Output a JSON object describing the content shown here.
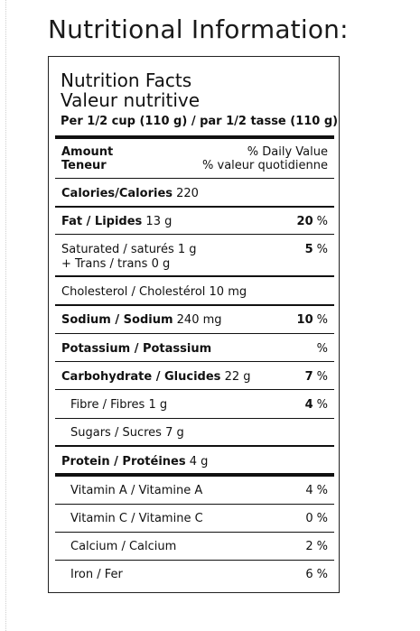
{
  "heading": "Nutritional Information:",
  "label": {
    "title_en": "Nutrition Facts",
    "title_fr": "Valeur nutritive",
    "serving": "Per 1/2 cup (110 g) / par 1/2 tasse (110 g)",
    "amount_en": "Amount",
    "amount_fr": "Teneur",
    "dv_en": "% Daily Value",
    "dv_fr": "% valeur quotidienne",
    "calories_label": "Calories/Calories",
    "calories_value": "220",
    "fat": {
      "label": "Fat / Lipides",
      "amount": "13 g",
      "dv": "20",
      "pct": "%"
    },
    "saturated": {
      "label": "Saturated / saturés 1 g",
      "dv": "5",
      "pct": "%"
    },
    "trans": {
      "label": "+ Trans / trans 0 g"
    },
    "cholesterol": {
      "label": "Cholesterol / Cholestérol 10 mg"
    },
    "sodium": {
      "label": "Sodium / Sodium",
      "amount": "240 mg",
      "dv": "10",
      "pct": "%"
    },
    "potassium": {
      "label": "Potassium / Potassium",
      "pct": "%"
    },
    "carbohydrate": {
      "label": "Carbohydrate / Glucides",
      "amount": "22 g",
      "dv": "7",
      "pct": "%"
    },
    "fibre": {
      "label": "Fibre / Fibres 1 g",
      "dv": "4",
      "pct": "%"
    },
    "sugars": {
      "label": "Sugars / Sucres 7 g"
    },
    "protein": {
      "label": "Protein / Protéines",
      "amount": "4 g"
    },
    "vitamin_a": {
      "label": "Vitamin A / Vitamine A",
      "dv": "4",
      "pct": "%"
    },
    "vitamin_c": {
      "label": "Vitamin C / Vitamine C",
      "dv": "0",
      "pct": "%"
    },
    "calcium": {
      "label": "Calcium / Calcium",
      "dv": "2",
      "pct": "%"
    },
    "iron": {
      "label": "Iron / Fer",
      "dv": "6",
      "pct": "%"
    }
  }
}
